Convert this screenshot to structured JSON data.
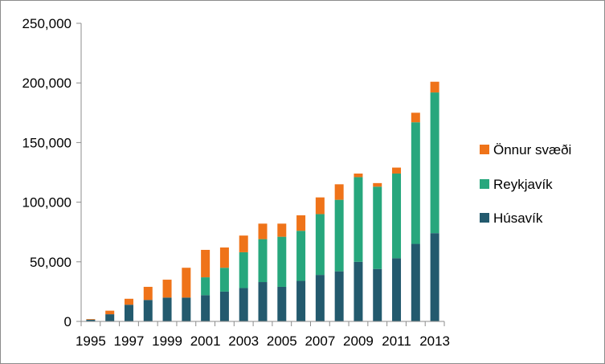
{
  "chart_data": {
    "type": "bar",
    "stacked": true,
    "title": "",
    "xlabel": "",
    "ylabel": "",
    "ylim": [
      0,
      250000
    ],
    "y_ticks": [
      0,
      50000,
      100000,
      150000,
      200000,
      250000
    ],
    "y_tick_labels": [
      "0",
      "50,000",
      "100,000",
      "150,000",
      "200,000",
      "250,000"
    ],
    "categories": [
      "1995",
      "1996",
      "1997",
      "1998",
      "1999",
      "2000",
      "2001",
      "2002",
      "2003",
      "2004",
      "2005",
      "2006",
      "2007",
      "2008",
      "2009",
      "2010",
      "2011",
      "2012",
      "2013"
    ],
    "x_tick_labels": [
      "1995",
      "1997",
      "1999",
      "2001",
      "2003",
      "2005",
      "2007",
      "2009",
      "2011",
      "2013"
    ],
    "grid": false,
    "legend_position": "right",
    "series": [
      {
        "name": "Húsavík",
        "color": "#235a6e",
        "values": [
          1500,
          6000,
          14000,
          18000,
          20000,
          20000,
          22000,
          25000,
          28000,
          33000,
          29000,
          34000,
          39000,
          42000,
          50000,
          44000,
          53000,
          65000,
          74000
        ]
      },
      {
        "name": "Reykjavík",
        "color": "#27a77d",
        "values": [
          0,
          0,
          0,
          0,
          0,
          0,
          15000,
          20000,
          30000,
          36000,
          42000,
          42000,
          51000,
          60000,
          71000,
          69000,
          71000,
          102000,
          118000
        ]
      },
      {
        "name": "Önnur svæði",
        "color": "#ef7319",
        "values": [
          500,
          3000,
          5000,
          11000,
          15000,
          25000,
          23000,
          17000,
          14000,
          13000,
          11000,
          13000,
          14000,
          13000,
          3000,
          3000,
          5000,
          8000,
          9000
        ]
      }
    ],
    "legend_order": [
      "Önnur svæði",
      "Reykjavík",
      "Húsavík"
    ]
  }
}
